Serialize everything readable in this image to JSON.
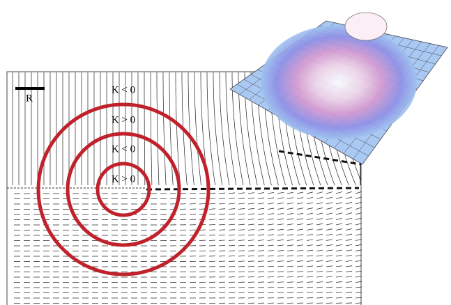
{
  "scale_label": "R",
  "regions": [
    {
      "label": "K < 0"
    },
    {
      "label": "K > 0"
    },
    {
      "label": "K < 0"
    },
    {
      "label": "K > 0"
    }
  ]
}
